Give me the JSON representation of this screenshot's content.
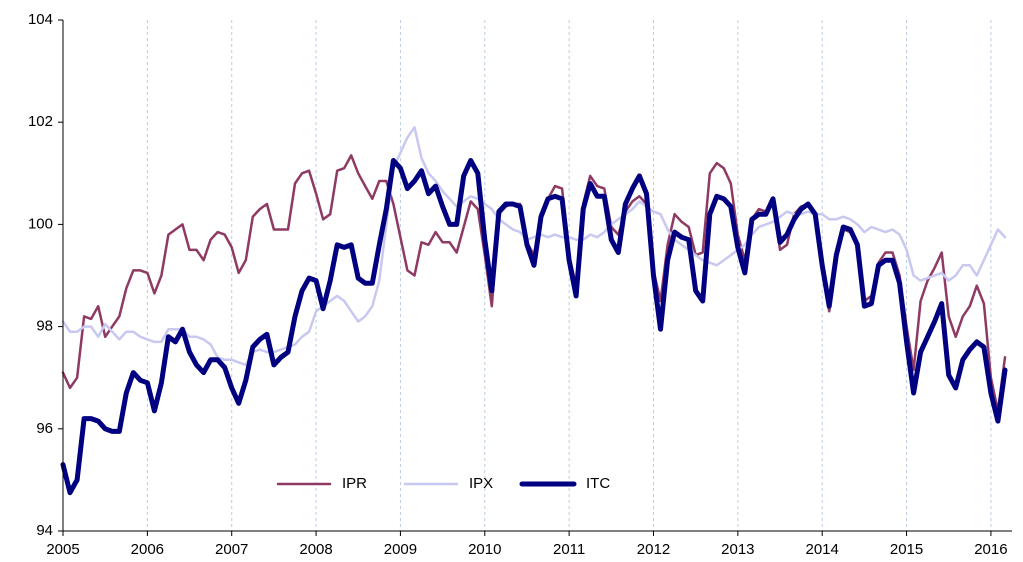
{
  "chart_data": {
    "type": "line",
    "x": [
      2005,
      2005.083,
      2005.167,
      2005.25,
      2005.333,
      2005.417,
      2005.5,
      2005.583,
      2005.667,
      2005.75,
      2005.833,
      2005.917,
      2006,
      2006.083,
      2006.167,
      2006.25,
      2006.333,
      2006.417,
      2006.5,
      2006.583,
      2006.667,
      2006.75,
      2006.833,
      2006.917,
      2007,
      2007.083,
      2007.167,
      2007.25,
      2007.333,
      2007.417,
      2007.5,
      2007.583,
      2007.667,
      2007.75,
      2007.833,
      2007.917,
      2008,
      2008.083,
      2008.167,
      2008.25,
      2008.333,
      2008.417,
      2008.5,
      2008.583,
      2008.667,
      2008.75,
      2008.833,
      2008.917,
      2009,
      2009.083,
      2009.167,
      2009.25,
      2009.333,
      2009.417,
      2009.5,
      2009.583,
      2009.667,
      2009.75,
      2009.833,
      2009.917,
      2010,
      2010.083,
      2010.167,
      2010.25,
      2010.333,
      2010.417,
      2010.5,
      2010.583,
      2010.667,
      2010.75,
      2010.833,
      2010.917,
      2011,
      2011.083,
      2011.167,
      2011.25,
      2011.333,
      2011.417,
      2011.5,
      2011.583,
      2011.667,
      2011.75,
      2011.833,
      2011.917,
      2012,
      2012.083,
      2012.167,
      2012.25,
      2012.333,
      2012.417,
      2012.5,
      2012.583,
      2012.667,
      2012.75,
      2012.833,
      2012.917,
      2013,
      2013.083,
      2013.167,
      2013.25,
      2013.333,
      2013.417,
      2013.5,
      2013.583,
      2013.667,
      2013.75,
      2013.833,
      2013.917,
      2014,
      2014.083,
      2014.167,
      2014.25,
      2014.333,
      2014.417,
      2014.5,
      2014.583,
      2014.667,
      2014.75,
      2014.833,
      2014.917,
      2015,
      2015.083,
      2015.167,
      2015.25,
      2015.333,
      2015.417,
      2015.5,
      2015.583,
      2015.667,
      2015.75,
      2015.833,
      2015.917,
      2016,
      2016.083,
      2016.167
    ],
    "series": [
      {
        "name": "IPR",
        "color": "#8e3a63",
        "width": 2.5,
        "values": [
          97.1,
          96.8,
          97.0,
          98.2,
          98.15,
          98.4,
          97.8,
          98.0,
          98.2,
          98.75,
          99.1,
          99.1,
          99.05,
          98.65,
          99.0,
          99.8,
          99.9,
          100.0,
          99.5,
          99.5,
          99.3,
          99.7,
          99.85,
          99.8,
          99.55,
          99.05,
          99.3,
          100.15,
          100.3,
          100.4,
          99.9,
          99.9,
          99.9,
          100.8,
          101.0,
          101.05,
          100.6,
          100.1,
          100.2,
          101.05,
          101.1,
          101.35,
          101.0,
          100.75,
          100.5,
          100.85,
          100.85,
          100.4,
          99.75,
          99.1,
          99.0,
          99.65,
          99.6,
          99.85,
          99.65,
          99.65,
          99.45,
          99.95,
          100.45,
          100.3,
          99.4,
          98.4,
          100.2,
          100.35,
          100.4,
          100.4,
          99.65,
          99.4,
          100.2,
          100.5,
          100.75,
          100.7,
          99.4,
          98.8,
          100.4,
          100.95,
          100.75,
          100.7,
          99.95,
          99.8,
          100.25,
          100.45,
          100.55,
          100.4,
          99.1,
          98.5,
          99.6,
          100.2,
          100.05,
          99.95,
          99.4,
          99.45,
          101.0,
          101.2,
          101.1,
          100.8,
          99.8,
          99.3,
          100.1,
          100.3,
          100.25,
          100.5,
          99.5,
          99.6,
          100.2,
          100.35,
          100.4,
          100.15,
          99.1,
          98.3,
          99.3,
          99.9,
          99.85,
          99.6,
          98.5,
          98.6,
          99.25,
          99.45,
          99.45,
          99.0,
          98.0,
          97.15,
          98.5,
          98.9,
          99.15,
          99.45,
          98.2,
          97.8,
          98.2,
          98.4,
          98.8,
          98.45,
          97.0,
          96.35,
          97.4
        ]
      },
      {
        "name": "IPX",
        "color": "#c8c8f0",
        "width": 2.5,
        "values": [
          98.1,
          97.9,
          97.9,
          98.0,
          98.0,
          97.8,
          98.05,
          97.9,
          97.75,
          97.9,
          97.9,
          97.8,
          97.75,
          97.7,
          97.7,
          97.95,
          97.95,
          97.95,
          97.8,
          97.8,
          97.75,
          97.65,
          97.4,
          97.35,
          97.35,
          97.3,
          97.25,
          97.5,
          97.55,
          97.5,
          97.5,
          97.55,
          97.6,
          97.65,
          97.8,
          97.9,
          98.3,
          98.4,
          98.5,
          98.6,
          98.5,
          98.3,
          98.1,
          98.2,
          98.4,
          98.9,
          100.0,
          101.1,
          101.4,
          101.7,
          101.9,
          101.3,
          101.0,
          100.85,
          100.65,
          100.5,
          100.35,
          100.45,
          100.55,
          100.5,
          100.4,
          100.3,
          100.1,
          100.0,
          99.9,
          99.85,
          99.7,
          99.75,
          99.8,
          99.75,
          99.8,
          99.75,
          99.75,
          99.7,
          99.7,
          99.8,
          99.75,
          99.85,
          100.0,
          100.1,
          100.2,
          100.3,
          100.45,
          100.35,
          100.25,
          100.2,
          99.9,
          99.7,
          99.6,
          99.5,
          99.4,
          99.3,
          99.25,
          99.2,
          99.3,
          99.4,
          99.5,
          99.6,
          99.8,
          99.95,
          100.0,
          100.05,
          100.15,
          100.25,
          100.2,
          100.2,
          100.25,
          100.2,
          100.2,
          100.1,
          100.1,
          100.15,
          100.1,
          100.0,
          99.85,
          99.95,
          99.9,
          99.85,
          99.9,
          99.8,
          99.5,
          99.0,
          98.9,
          98.95,
          99.0,
          99.05,
          98.9,
          99.0,
          99.2,
          99.2,
          99.0,
          99.3,
          99.6,
          99.9,
          99.75
        ]
      },
      {
        "name": "ITC",
        "color": "#000080",
        "width": 5,
        "values": [
          95.3,
          94.75,
          95.0,
          96.2,
          96.2,
          96.15,
          96.0,
          95.95,
          95.95,
          96.7,
          97.1,
          96.95,
          96.9,
          96.35,
          96.9,
          97.8,
          97.7,
          97.95,
          97.5,
          97.25,
          97.1,
          97.35,
          97.35,
          97.2,
          96.8,
          96.5,
          96.95,
          97.6,
          97.75,
          97.85,
          97.25,
          97.4,
          97.5,
          98.2,
          98.7,
          98.95,
          98.9,
          98.35,
          98.9,
          99.6,
          99.55,
          99.6,
          98.95,
          98.85,
          98.85,
          99.6,
          100.3,
          101.25,
          101.1,
          100.7,
          100.85,
          101.05,
          100.6,
          100.75,
          100.35,
          100.0,
          100.0,
          100.95,
          101.25,
          101.0,
          99.7,
          98.7,
          100.25,
          100.4,
          100.4,
          100.35,
          99.6,
          99.2,
          100.15,
          100.5,
          100.55,
          100.5,
          99.3,
          98.6,
          100.3,
          100.8,
          100.55,
          100.55,
          99.7,
          99.45,
          100.4,
          100.7,
          100.95,
          100.6,
          99.0,
          97.95,
          99.3,
          99.85,
          99.75,
          99.7,
          98.7,
          98.5,
          100.2,
          100.55,
          100.5,
          100.35,
          99.55,
          99.05,
          100.1,
          100.2,
          100.2,
          100.5,
          99.65,
          99.8,
          100.1,
          100.3,
          100.4,
          100.2,
          99.2,
          98.4,
          99.4,
          99.95,
          99.9,
          99.6,
          98.4,
          98.45,
          99.2,
          99.3,
          99.3,
          98.85,
          97.7,
          96.7,
          97.5,
          97.8,
          98.1,
          98.45,
          97.05,
          96.8,
          97.35,
          97.55,
          97.7,
          97.6,
          96.7,
          96.15,
          97.15
        ]
      }
    ],
    "xlim": [
      2005,
      2016.25
    ],
    "xticks": [
      2005,
      2006,
      2007,
      2008,
      2009,
      2010,
      2011,
      2012,
      2013,
      2014,
      2015,
      2016
    ],
    "ylim": [
      94,
      104
    ],
    "yticks": [
      94,
      96,
      98,
      100,
      102,
      104
    ],
    "grid": "x",
    "legend": "bottom"
  }
}
